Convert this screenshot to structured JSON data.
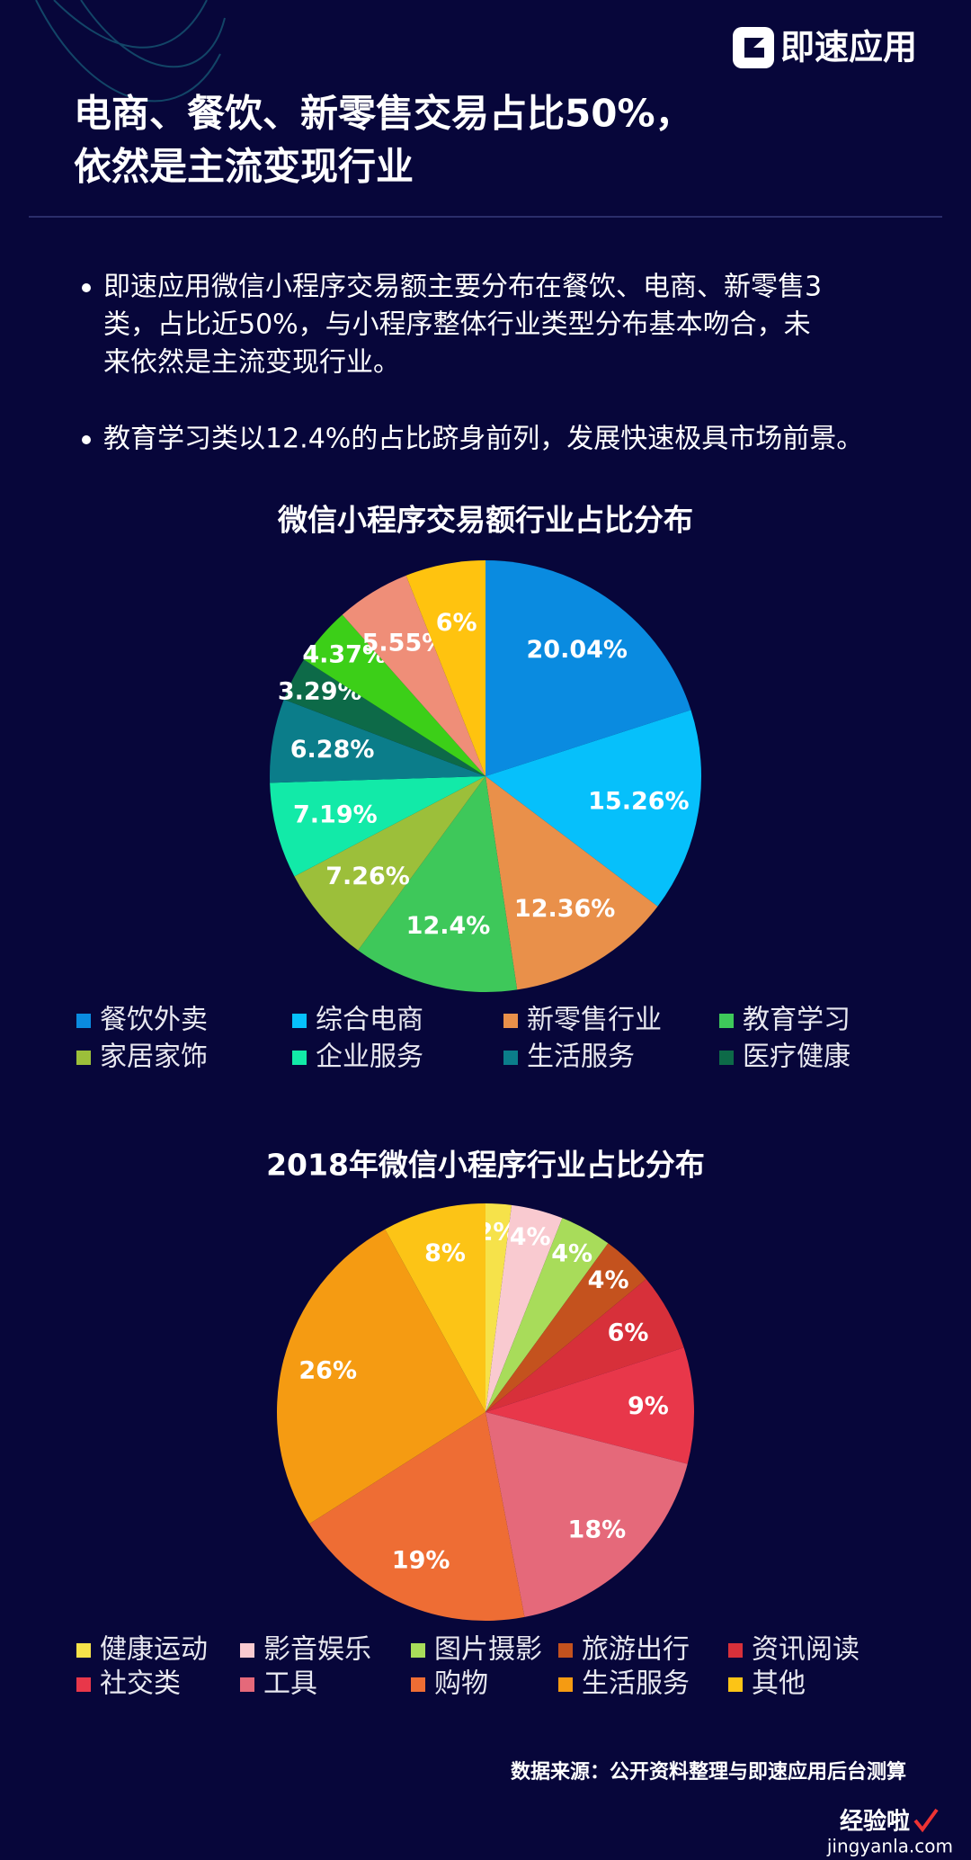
{
  "header": {
    "logo": "即速应用",
    "title": [
      "电商、餐饮、新零售交易占比50%，",
      "依然是主流变现行业"
    ]
  },
  "bullets": [
    [
      "即速应用微信小程序交易额主要分布在餐饮、电商、新零售3",
      "类，占比近50%，与小程序整体行业类型分布基本吻合，未",
      "来依然是主流变现行业。"
    ],
    [
      "教育学习类以12.4%的占比跻身前列，发展快速极具市场前景。"
    ]
  ],
  "chart_data": [
    {
      "type": "pie",
      "title": "微信小程序交易额行业占比分布",
      "categories": [
        "餐饮外卖",
        "综合电商",
        "新零售行业",
        "教育学习",
        "家居家饰",
        "企业服务",
        "生活服务",
        "医疗健康",
        null,
        null,
        null
      ],
      "values": [
        20.04,
        15.26,
        12.36,
        12.4,
        7.26,
        7.19,
        6.28,
        3.29,
        4.37,
        5.55,
        6
      ],
      "value_labels": [
        "20.04%",
        "15.26%",
        "12.36%",
        "12.4%",
        "7.26%",
        "7.19%",
        "6.28%",
        "3.29%",
        "4.37%",
        "5.55%",
        "6%"
      ],
      "colors": [
        "#0a8be0",
        "#06c0fb",
        "#e9904a",
        "#3ec85a",
        "#9cbf3a",
        "#12eaa8",
        "#0b7d8a",
        "#0d6a48",
        "#3ccf18",
        "#ef8e78",
        "#ffc30f"
      ]
    },
    {
      "type": "pie",
      "title": "2018年微信小程序行业占比分布",
      "categories": [
        "健康运动",
        "影音娱乐",
        "图片摄影",
        "旅游出行",
        "资讯阅读",
        "社交类",
        "工具",
        "购物",
        "生活服务",
        "其他"
      ],
      "values": [
        2,
        4,
        4,
        4,
        6,
        9,
        18,
        19,
        26,
        8
      ],
      "value_labels": [
        "2%",
        "4%",
        "4%",
        "4%",
        "6%",
        "9%",
        "18%",
        "19%",
        "26%",
        "8%"
      ],
      "colors": [
        "#f6e24a",
        "#f9cad0",
        "#a8dc5a",
        "#c4521e",
        "#d7303a",
        "#e8374a",
        "#e5697a",
        "#ee6d34",
        "#f59b12",
        "#fcc416"
      ]
    }
  ],
  "source": "数据来源：公开资料整理与即速应用后台测算",
  "watermark": [
    "经验啦",
    "jingyanla.com"
  ]
}
